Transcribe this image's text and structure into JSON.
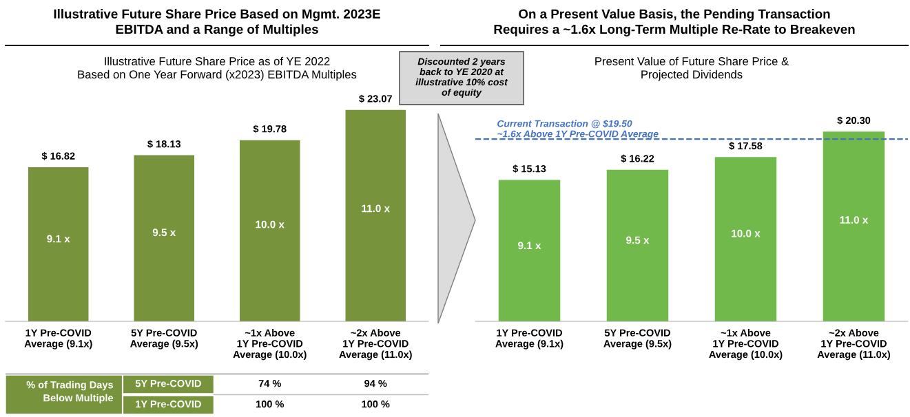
{
  "chart_data": [
    {
      "type": "bar",
      "title": "Illustrative Future Share Price Based on Mgmt. 2023E\nEBITDA and a Range of Multiples",
      "subtitle": "Illustrative Future Share Price as of YE 2022\nBased on One Year Forward (x2023) EBITDA Multiples",
      "categories": [
        "1Y Pre-COVID\nAverage (9.1x)",
        "5Y Pre-COVID\nAverage (9.5x)",
        "~1x Above\n1Y Pre-COVID\nAverage (10.0x)",
        "~2x Above\n1Y Pre-COVID\nAverage (11.0x)"
      ],
      "values": [
        16.82,
        18.13,
        19.78,
        23.07
      ],
      "color": "#77933c",
      "value_labels": [
        "$ 16.82",
        "$ 18.13",
        "$ 19.78",
        "$ 23.07"
      ],
      "tick_labels": "x",
      "grid": false,
      "legend": false,
      "annotations": [
        "9.1 x",
        "9.5 x",
        "10.0 x",
        "11.0 x"
      ]
    },
    {
      "type": "bar",
      "title": "On a Present Value Basis, the Pending Transaction\nRequires a ~1.6x Long-Term Multiple Re-Rate to Breakeven",
      "subtitle": "Present Value of Future Share Price &\nProjected Dividends",
      "categories": [
        "1Y Pre-COVID\nAverage (9.1x)",
        "5Y Pre-COVID\nAverage (9.5x)",
        "~1x Above\n1Y Pre-COVID\nAverage (10.0x)",
        "~2x Above\n1Y Pre-COVID\nAverage (11.0x)"
      ],
      "values": [
        15.13,
        16.22,
        17.58,
        20.3
      ],
      "color": "#70b94a",
      "value_labels": [
        "$ 15.13",
        "$ 16.22",
        "$ 17.58",
        "$ 20.30"
      ],
      "tick_labels": "x",
      "grid": false,
      "legend": false,
      "ref_lines": [
        {
          "axis": "y",
          "value": 19.5,
          "label": "Current Transaction @ $19.50\n~1.6x Above 1Y Pre-COVID Average",
          "color": "#4472c4",
          "line_style": "dashed"
        }
      ],
      "annotations": [
        "9.1 x",
        "9.5 x",
        "10.0 x",
        "11.0 x",
        "Discounted 2 years\nback to YE 2020 at\nillustrative 10% cost\nof equity"
      ]
    },
    {
      "type": "other",
      "annotations": [
        "% of Trading Days\nBelow Multiple",
        "5Y Pre-COVID",
        "74 %",
        "94 %",
        "1Y Pre-COVID",
        "100 %",
        "100 %"
      ]
    }
  ]
}
